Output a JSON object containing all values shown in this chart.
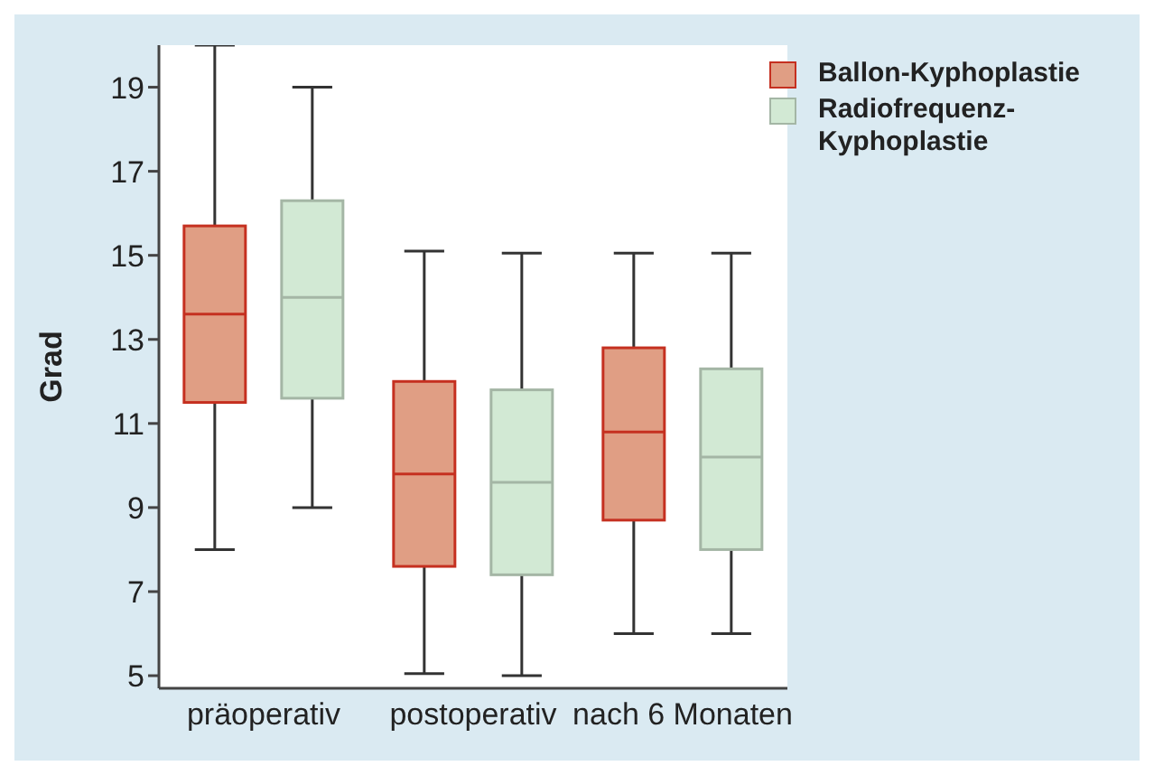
{
  "chart_data": {
    "type": "box",
    "ylabel": "Grad",
    "categories": [
      "präoperativ",
      "postoperativ",
      "nach 6 Monaten"
    ],
    "ylim": [
      4.7,
      20
    ],
    "yticks": [
      5,
      7,
      9,
      11,
      13,
      15,
      17,
      19
    ],
    "grid": false,
    "legend": "top right",
    "series": [
      {
        "name": "Ballon-Kyphoplastie",
        "color": "#e09e84",
        "boxes": [
          {
            "low": 8,
            "q1": 11.5,
            "median": 13.6,
            "q3": 15.7,
            "high": 20
          },
          {
            "low": 5.05,
            "q1": 7.6,
            "median": 9.8,
            "q3": 12,
            "high": 15.1
          },
          {
            "low": 6,
            "q1": 8.7,
            "median": 10.8,
            "q3": 12.8,
            "high": 15.05
          }
        ]
      },
      {
        "name": "Radiofrequenz-Kyphoplastie",
        "color": "#d2e9d4",
        "boxes": [
          {
            "low": 9,
            "q1": 11.6,
            "median": 14,
            "q3": 16.3,
            "high": 19
          },
          {
            "low": 5,
            "q1": 7.4,
            "median": 9.6,
            "q3": 11.8,
            "high": 15.05
          },
          {
            "low": 6,
            "q1": 8,
            "median": 10.2,
            "q3": 12.3,
            "high": 15.05
          }
        ]
      }
    ]
  }
}
